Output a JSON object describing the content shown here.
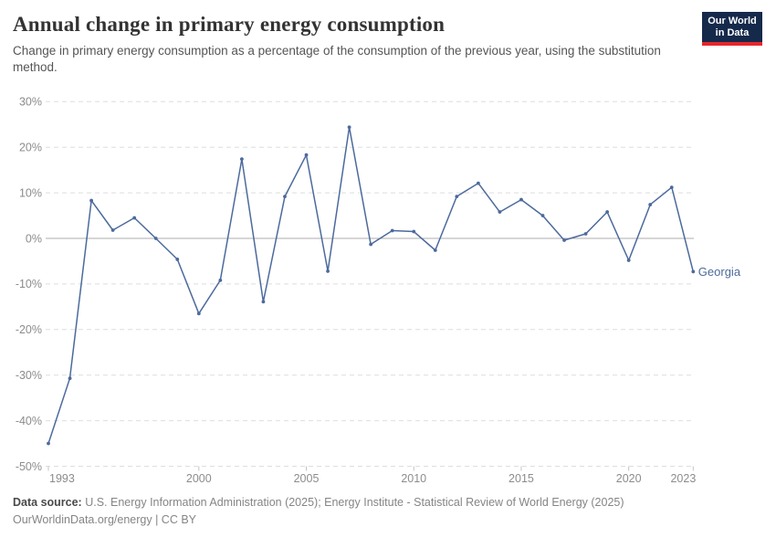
{
  "header": {
    "title": "Annual change in primary energy consumption",
    "subtitle": "Change in primary energy consumption as a percentage of the consumption of the previous year, using the substitution method.",
    "logo": {
      "line1": "Our World",
      "line2": "in Data",
      "bg_color": "#15294B",
      "stripe_color": "#E5262D"
    }
  },
  "chart_data": {
    "type": "line",
    "title": "Annual change in primary energy consumption",
    "xlabel": "",
    "ylabel": "",
    "x": [
      1993,
      1994,
      1995,
      1996,
      1997,
      1998,
      1999,
      2000,
      2001,
      2002,
      2003,
      2004,
      2005,
      2006,
      2007,
      2008,
      2009,
      2010,
      2011,
      2012,
      2013,
      2014,
      2015,
      2016,
      2017,
      2018,
      2019,
      2020,
      2021,
      2022,
      2023
    ],
    "series": [
      {
        "name": "Georgia",
        "color": "#4C6A9C",
        "values": [
          -45,
          -30.7,
          8.3,
          1.8,
          4.5,
          0,
          -4.6,
          -16.5,
          -9.2,
          17.4,
          -13.9,
          9.2,
          18.3,
          -7.2,
          24.4,
          -1.3,
          1.7,
          1.5,
          -2.6,
          9.2,
          12.1,
          5.8,
          8.5,
          5,
          -0.4,
          1,
          5.8,
          -4.8,
          7.4,
          11.2,
          -7.3
        ]
      }
    ],
    "xticks": [
      1993,
      2000,
      2005,
      2010,
      2015,
      2020,
      2023
    ],
    "yticks": [
      30,
      20,
      10,
      0,
      -10,
      -20,
      -30,
      -40,
      -50
    ],
    "ytick_suffix": "%",
    "xlim": [
      1993,
      2023
    ],
    "ylim": [
      -50,
      30
    ],
    "grid": "horizontal-dashed",
    "legend_position": "end-of-line-label",
    "end_label": "Georgia",
    "colors": {
      "grid": "#dedede",
      "zero_line": "#aeaeae",
      "axis_text": "#8c8c8c",
      "tick_mark": "#c4c4c4"
    }
  },
  "footer": {
    "source_label": "Data source:",
    "source_text": "U.S. Energy Information Administration (2025); Energy Institute - Statistical Review of World Energy (2025)",
    "license_text": "OurWorldinData.org/energy | CC BY"
  }
}
